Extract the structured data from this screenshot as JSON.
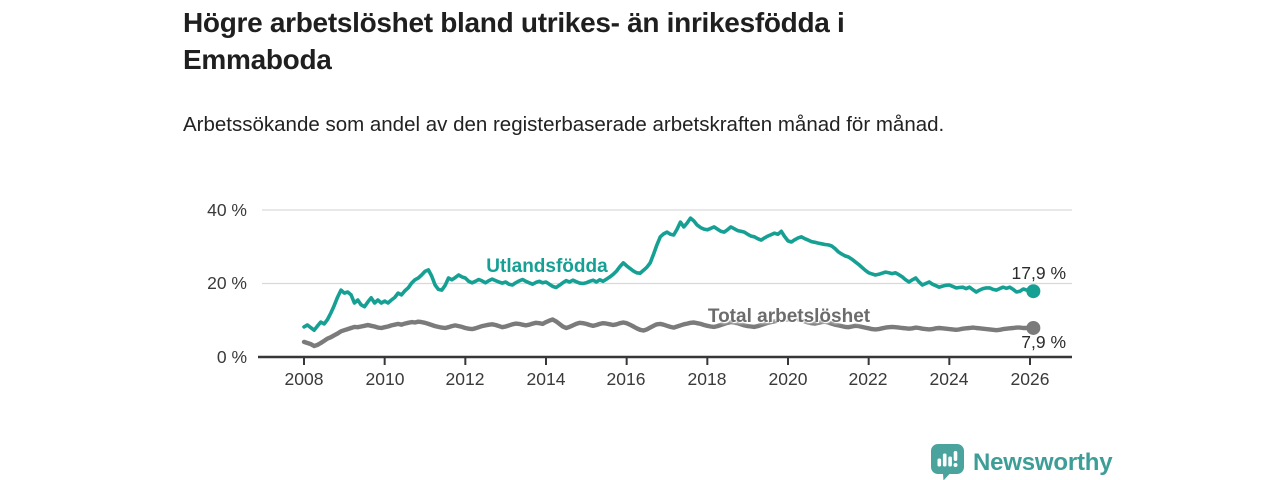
{
  "header": {
    "title": "Högre arbetslöshet bland utrikes- än inrikesfödda i Emmaboda",
    "subtitle": "Arbetssökande som andel av den registerbaserade arbetskraften månad för månad."
  },
  "branding": {
    "name": "Newsworthy",
    "logo_icon": "speech-bubble-bar-chart-icon",
    "icon_color": "#4aa49d",
    "text_color": "#3d9d97"
  },
  "colors": {
    "accent_teal": "#16a094",
    "series_gray": "#7b7b7b",
    "axis": "#37373a",
    "gridline": "#d9d9d9",
    "annotation_text": "#2b2b2b"
  },
  "chart_data": {
    "type": "line",
    "title": "Högre arbetslöshet bland utrikes- än inrikesfödda i Emmaboda",
    "subtitle": "Arbetssökande som andel av den registerbaserade arbetskraften månad för månad.",
    "xlabel": "",
    "ylabel": "",
    "grid": "horizontal",
    "legend_position": "inline-labels",
    "xlim": [
      2006.9,
      2027.1
    ],
    "ylim": [
      0,
      42
    ],
    "x_ticks": [
      "2008",
      "2010",
      "2012",
      "2014",
      "2016",
      "2018",
      "2020",
      "2022",
      "2024",
      "2026"
    ],
    "x_tick_years": [
      2008,
      2010,
      2012,
      2014,
      2016,
      2018,
      2020,
      2022,
      2024,
      2026
    ],
    "y_ticks": [
      "0 %",
      "20 %",
      "40 %"
    ],
    "y_tick_values": [
      0,
      20,
      40
    ],
    "y_gridlines": [
      20,
      40
    ],
    "x_start": 2008.0,
    "x_step_years": 0.083333,
    "series": [
      {
        "name": "Utlandsfödda",
        "color": "#16a094",
        "end_label": "17,9 %",
        "end_value": 17.9,
        "values": [
          8.2,
          8.7,
          8.0,
          7.3,
          8.4,
          9.5,
          9.0,
          10.2,
          12.0,
          14.0,
          16.3,
          18.2,
          17.4,
          17.7,
          16.9,
          14.7,
          15.5,
          14.2,
          13.7,
          15.0,
          16.1,
          14.7,
          15.5,
          14.7,
          15.2,
          14.7,
          15.5,
          16.2,
          17.4,
          16.9,
          18.0,
          18.8,
          20.1,
          21.0,
          21.5,
          22.3,
          23.3,
          23.7,
          22.0,
          19.6,
          18.4,
          18.2,
          19.5,
          21.5,
          21.0,
          21.6,
          22.3,
          21.8,
          21.5,
          20.6,
          20.2,
          20.6,
          21.1,
          20.7,
          20.2,
          20.8,
          21.2,
          20.8,
          20.4,
          20.1,
          20.4,
          19.8,
          19.6,
          20.2,
          20.7,
          21.1,
          20.6,
          20.2,
          19.8,
          20.3,
          20.6,
          20.2,
          20.4,
          19.8,
          19.2,
          18.9,
          19.5,
          20.2,
          20.8,
          20.4,
          20.9,
          20.5,
          20.1,
          20.0,
          20.2,
          20.6,
          20.9,
          20.4,
          21.0,
          20.6,
          21.2,
          21.8,
          22.5,
          23.4,
          24.6,
          25.6,
          24.8,
          24.1,
          23.4,
          22.9,
          22.8,
          23.6,
          24.4,
          25.6,
          28.0,
          30.5,
          32.7,
          33.5,
          34.0,
          33.4,
          33.2,
          34.8,
          36.7,
          35.4,
          36.5,
          37.8,
          37.0,
          35.9,
          35.2,
          34.8,
          34.6,
          35.0,
          35.4,
          34.8,
          34.2,
          34.0,
          34.6,
          35.4,
          34.9,
          34.4,
          34.2,
          34.0,
          33.4,
          32.9,
          32.7,
          32.2,
          31.8,
          32.4,
          32.9,
          33.3,
          33.7,
          33.4,
          34.2,
          32.8,
          31.6,
          31.3,
          31.9,
          32.4,
          32.7,
          32.2,
          31.8,
          31.4,
          31.2,
          31.0,
          30.8,
          30.6,
          30.5,
          30.2,
          29.5,
          28.6,
          28.0,
          27.5,
          27.2,
          26.6,
          25.9,
          25.2,
          24.4,
          23.6,
          22.9,
          22.6,
          22.3,
          22.5,
          22.8,
          23.1,
          22.9,
          22.7,
          22.9,
          22.4,
          21.8,
          21.0,
          20.4,
          21.0,
          21.5,
          20.4,
          19.6,
          20.0,
          20.4,
          19.8,
          19.4,
          19.0,
          19.3,
          19.5,
          19.6,
          19.2,
          18.8,
          18.9,
          19.0,
          18.6,
          19.0,
          18.3,
          17.7,
          18.2,
          18.6,
          18.8,
          18.8,
          18.4,
          18.2,
          18.6,
          19.0,
          18.7,
          19.0,
          18.4,
          17.7,
          17.9,
          18.5,
          18.2,
          18.0,
          17.9
        ]
      },
      {
        "name": "Total arbetslöshet",
        "color": "#7b7b7b",
        "end_label": "7,9 %",
        "end_value": 7.9,
        "values": [
          4.1,
          3.8,
          3.5,
          3.0,
          3.3,
          3.8,
          4.4,
          5.0,
          5.4,
          5.9,
          6.4,
          7.0,
          7.3,
          7.6,
          7.9,
          8.2,
          8.1,
          8.3,
          8.5,
          8.7,
          8.5,
          8.3,
          8.0,
          7.9,
          8.1,
          8.3,
          8.6,
          8.8,
          9.0,
          8.8,
          9.1,
          9.3,
          9.5,
          9.4,
          9.6,
          9.5,
          9.3,
          9.0,
          8.7,
          8.4,
          8.2,
          8.0,
          7.9,
          8.1,
          8.4,
          8.6,
          8.4,
          8.2,
          7.9,
          7.7,
          7.6,
          7.8,
          8.1,
          8.4,
          8.6,
          8.8,
          8.9,
          8.7,
          8.4,
          8.1,
          8.3,
          8.6,
          8.9,
          9.1,
          9.0,
          8.8,
          8.6,
          8.8,
          9.1,
          9.3,
          9.2,
          9.0,
          9.5,
          9.9,
          10.2,
          9.7,
          9.0,
          8.3,
          7.9,
          8.2,
          8.6,
          9.0,
          9.3,
          9.2,
          9.0,
          8.7,
          8.5,
          8.7,
          9.0,
          9.2,
          9.1,
          8.9,
          8.7,
          8.9,
          9.2,
          9.4,
          9.2,
          8.8,
          8.3,
          7.8,
          7.4,
          7.2,
          7.5,
          8.0,
          8.5,
          8.9,
          9.0,
          8.8,
          8.5,
          8.2,
          8.0,
          8.3,
          8.6,
          8.9,
          9.1,
          9.3,
          9.4,
          9.2,
          9.0,
          8.7,
          8.5,
          8.3,
          8.2,
          8.4,
          8.7,
          9.0,
          9.3,
          9.5,
          9.4,
          9.2,
          8.9,
          8.6,
          8.4,
          8.3,
          8.2,
          8.4,
          8.7,
          9.0,
          9.3,
          9.5,
          9.7,
          9.9,
          10.0,
          10.1,
          10.2,
          10.4,
          10.5,
          10.3,
          10.0,
          9.7,
          9.4,
          9.2,
          9.1,
          9.3,
          9.5,
          9.6,
          9.4,
          9.1,
          8.8,
          8.6,
          8.4,
          8.2,
          8.1,
          8.3,
          8.5,
          8.4,
          8.2,
          8.0,
          7.8,
          7.6,
          7.5,
          7.6,
          7.8,
          8.0,
          8.1,
          8.2,
          8.1,
          8.0,
          7.9,
          7.8,
          7.7,
          7.8,
          8.0,
          7.9,
          7.7,
          7.6,
          7.5,
          7.6,
          7.8,
          7.9,
          7.8,
          7.7,
          7.6,
          7.5,
          7.4,
          7.5,
          7.7,
          7.8,
          7.9,
          8.0,
          7.9,
          7.8,
          7.7,
          7.6,
          7.5,
          7.4,
          7.3,
          7.4,
          7.6,
          7.7,
          7.8,
          7.9,
          8.0,
          8.0,
          7.9,
          7.9,
          7.9,
          7.9
        ]
      }
    ]
  }
}
